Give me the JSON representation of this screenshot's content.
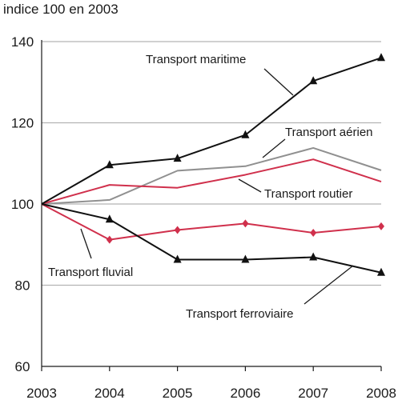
{
  "chart_data": {
    "type": "line",
    "unit_label": "indice 100 en 2003",
    "x": [
      "2003",
      "2004",
      "2005",
      "2006",
      "2007",
      "2008"
    ],
    "ylim": [
      60,
      140
    ],
    "yticks": [
      "60",
      "80",
      "100",
      "120",
      "140"
    ],
    "grid": true,
    "series": [
      {
        "name": "Transport maritime",
        "values": [
          100,
          109.6,
          111.2,
          117,
          130.3,
          136
        ],
        "color": "#111111",
        "marker": "triangle"
      },
      {
        "name": "Transport aérien",
        "values": [
          100,
          101,
          108.2,
          109.3,
          113.8,
          108.3
        ],
        "color": "#909090",
        "marker": "none"
      },
      {
        "name": "Transport routier",
        "values": [
          100,
          104.7,
          104,
          107.2,
          111,
          105.5
        ],
        "color": "#d0304c",
        "marker": "none"
      },
      {
        "name": "Transport fluvial",
        "values": [
          100,
          91.2,
          93.6,
          95.2,
          92.9,
          94.5
        ],
        "color": "#d0304c",
        "marker": "diamond"
      },
      {
        "name": "Transport ferroviaire",
        "values": [
          100,
          96.2,
          86.3,
          86.3,
          86.9,
          83.1
        ],
        "color": "#111111",
        "marker": "triangle"
      }
    ]
  }
}
